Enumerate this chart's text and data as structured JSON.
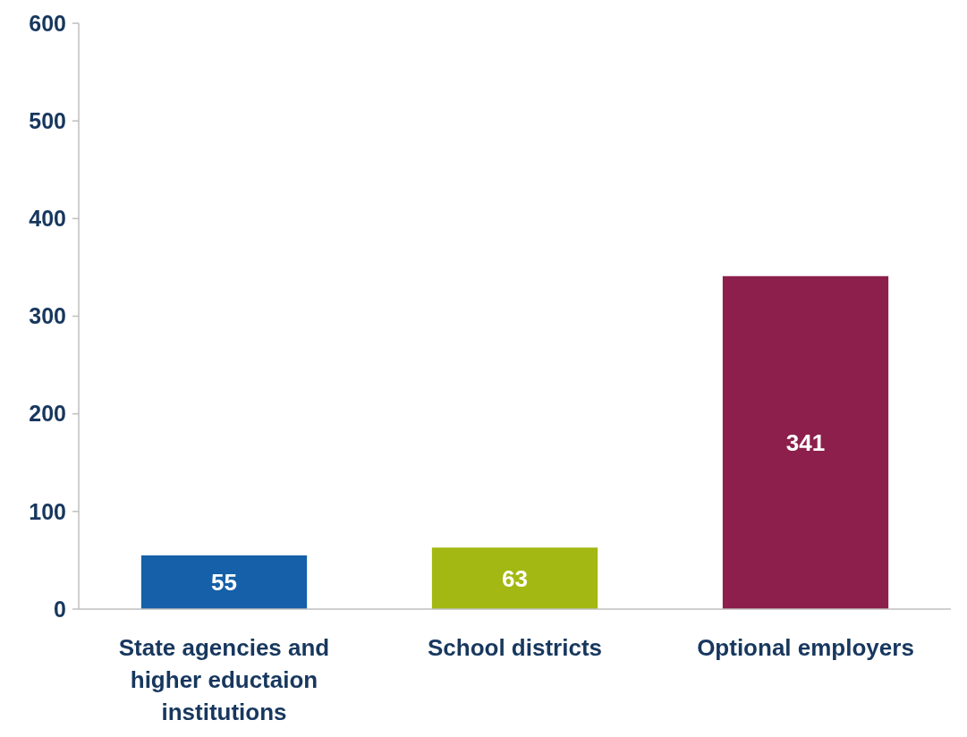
{
  "chart_data": {
    "type": "bar",
    "categories": [
      "State agencies and higher eductaion institutions",
      "School districts",
      "Optional employers"
    ],
    "values": [
      55,
      63,
      341
    ],
    "colors": [
      "#1560a8",
      "#a3b812",
      "#8c1f4b"
    ],
    "ylim": [
      0,
      600
    ],
    "yticks": [
      0,
      100,
      200,
      300,
      400,
      500,
      600
    ],
    "data_labels": true
  }
}
